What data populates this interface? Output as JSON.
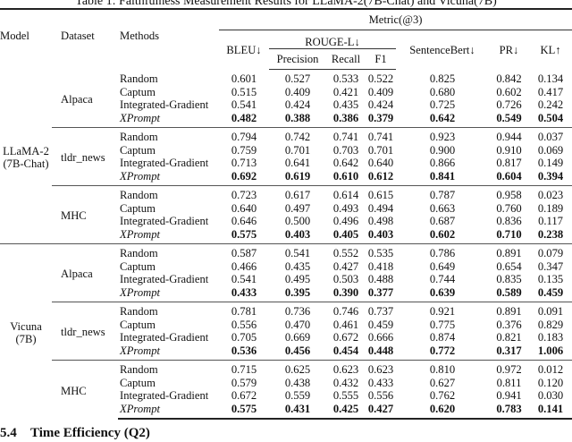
{
  "caption": "Table 1: Faithfulness Measurement Results for LLaMA-2(7B-Chat) and Vicuna(7B)",
  "header": {
    "model": "Model",
    "dataset": "Dataset",
    "methods": "Methods",
    "metric_group": "Metric(@3)",
    "bleu": "BLEU↓",
    "rouge": "ROUGE-L↓",
    "precision": "Precision",
    "recall": "Recall",
    "f1": "F1",
    "sentencebert": "SentenceBert↓",
    "pr": "PR↓",
    "kl": "KL↑"
  },
  "models": [
    {
      "name": "LLaMA-2\n(7B-Chat)",
      "datasets": [
        {
          "name": "Alpaca",
          "rows": [
            {
              "method": "Random",
              "values": [
                "0.601",
                "0.527",
                "0.533",
                "0.522",
                "0.825",
                "0.842",
                "0.134"
              ]
            },
            {
              "method": "Captum",
              "values": [
                "0.515",
                "0.409",
                "0.421",
                "0.409",
                "0.680",
                "0.602",
                "0.417"
              ]
            },
            {
              "method": "Integrated-Gradient",
              "values": [
                "0.541",
                "0.424",
                "0.435",
                "0.424",
                "0.725",
                "0.726",
                "0.242"
              ]
            },
            {
              "method": "XPrompt",
              "best": true,
              "values": [
                "0.482",
                "0.388",
                "0.386",
                "0.379",
                "0.642",
                "0.549",
                "0.504"
              ]
            }
          ]
        },
        {
          "name": "tldr_news",
          "rows": [
            {
              "method": "Random",
              "values": [
                "0.794",
                "0.742",
                "0.741",
                "0.741",
                "0.923",
                "0.944",
                "0.037"
              ]
            },
            {
              "method": "Captum",
              "values": [
                "0.759",
                "0.701",
                "0.703",
                "0.701",
                "0.900",
                "0.910",
                "0.069"
              ]
            },
            {
              "method": "Integrated-Gradient",
              "values": [
                "0.713",
                "0.641",
                "0.642",
                "0.640",
                "0.866",
                "0.817",
                "0.149"
              ]
            },
            {
              "method": "XPrompt",
              "best": true,
              "values": [
                "0.692",
                "0.619",
                "0.610",
                "0.612",
                "0.841",
                "0.604",
                "0.394"
              ]
            }
          ]
        },
        {
          "name": "MHC",
          "rows": [
            {
              "method": "Random",
              "values": [
                "0.723",
                "0.617",
                "0.614",
                "0.615",
                "0.787",
                "0.958",
                "0.023"
              ]
            },
            {
              "method": "Captum",
              "values": [
                "0.640",
                "0.497",
                "0.493",
                "0.494",
                "0.663",
                "0.760",
                "0.189"
              ]
            },
            {
              "method": "Integrated-Gradient",
              "values": [
                "0.646",
                "0.500",
                "0.496",
                "0.498",
                "0.687",
                "0.836",
                "0.117"
              ]
            },
            {
              "method": "XPrompt",
              "best": true,
              "values": [
                "0.575",
                "0.403",
                "0.405",
                "0.403",
                "0.602",
                "0.710",
                "0.238"
              ]
            }
          ]
        }
      ]
    },
    {
      "name": "Vicuna\n(7B)",
      "datasets": [
        {
          "name": "Alpaca",
          "rows": [
            {
              "method": "Random",
              "values": [
                "0.587",
                "0.541",
                "0.552",
                "0.535",
                "0.786",
                "0.891",
                "0.079"
              ]
            },
            {
              "method": "Captum",
              "values": [
                "0.466",
                "0.435",
                "0.427",
                "0.418",
                "0.649",
                "0.654",
                "0.347"
              ]
            },
            {
              "method": "Integrated-Gradient",
              "values": [
                "0.541",
                "0.495",
                "0.503",
                "0.488",
                "0.744",
                "0.835",
                "0.135"
              ]
            },
            {
              "method": "XPrompt",
              "best": true,
              "values": [
                "0.433",
                "0.395",
                "0.390",
                "0.377",
                "0.639",
                "0.589",
                "0.459"
              ]
            }
          ]
        },
        {
          "name": "tldr_news",
          "rows": [
            {
              "method": "Random",
              "values": [
                "0.781",
                "0.736",
                "0.746",
                "0.737",
                "0.921",
                "0.891",
                "0.091"
              ]
            },
            {
              "method": "Captum",
              "values": [
                "0.556",
                "0.470",
                "0.461",
                "0.459",
                "0.775",
                "0.376",
                "0.829"
              ]
            },
            {
              "method": "Integrated-Gradient",
              "values": [
                "0.705",
                "0.669",
                "0.672",
                "0.666",
                "0.874",
                "0.821",
                "0.183"
              ]
            },
            {
              "method": "XPrompt",
              "best": true,
              "values": [
                "0.536",
                "0.456",
                "0.454",
                "0.448",
                "0.772",
                "0.317",
                "1.006"
              ]
            }
          ]
        },
        {
          "name": "MHC",
          "rows": [
            {
              "method": "Random",
              "values": [
                "0.715",
                "0.625",
                "0.623",
                "0.623",
                "0.810",
                "0.972",
                "0.012"
              ]
            },
            {
              "method": "Captum",
              "values": [
                "0.579",
                "0.438",
                "0.432",
                "0.433",
                "0.627",
                "0.811",
                "0.120"
              ]
            },
            {
              "method": "Integrated-Gradient",
              "values": [
                "0.672",
                "0.559",
                "0.555",
                "0.556",
                "0.762",
                "0.941",
                "0.030"
              ]
            },
            {
              "method": "XPrompt",
              "best": true,
              "values": [
                "0.575",
                "0.431",
                "0.425",
                "0.427",
                "0.620",
                "0.783",
                "0.141"
              ]
            }
          ]
        }
      ]
    }
  ],
  "section": {
    "number": "5.4",
    "title": "Time Efficiency (Q2)"
  }
}
